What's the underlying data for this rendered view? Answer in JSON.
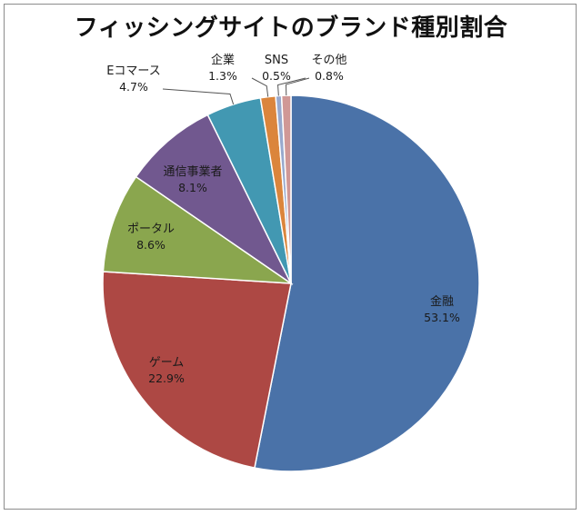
{
  "chart_data": {
    "type": "pie",
    "title": "フィッシングサイトのブランド種別割合",
    "slices": [
      {
        "label": "金融",
        "value": 53.1,
        "value_label": "53.1%",
        "color": "#4a72a8"
      },
      {
        "label": "ゲーム",
        "value": 22.9,
        "value_label": "22.9%",
        "color": "#ad4844"
      },
      {
        "label": "ポータル",
        "value": 8.6,
        "value_label": "8.6%",
        "color": "#8aa64e"
      },
      {
        "label": "通信事業者",
        "value": 8.1,
        "value_label": "8.1%",
        "color": "#71588f"
      },
      {
        "label": "Eコマース",
        "value": 4.7,
        "value_label": "4.7%",
        "color": "#4298b2"
      },
      {
        "label": "企業",
        "value": 1.3,
        "value_label": "1.3%",
        "color": "#db853c"
      },
      {
        "label": "SNS",
        "value": 0.5,
        "value_label": "0.5%",
        "color": "#98a9cd"
      },
      {
        "label": "その他",
        "value": 0.8,
        "value_label": "0.8%",
        "color": "#d09896"
      }
    ],
    "legend": "none"
  }
}
